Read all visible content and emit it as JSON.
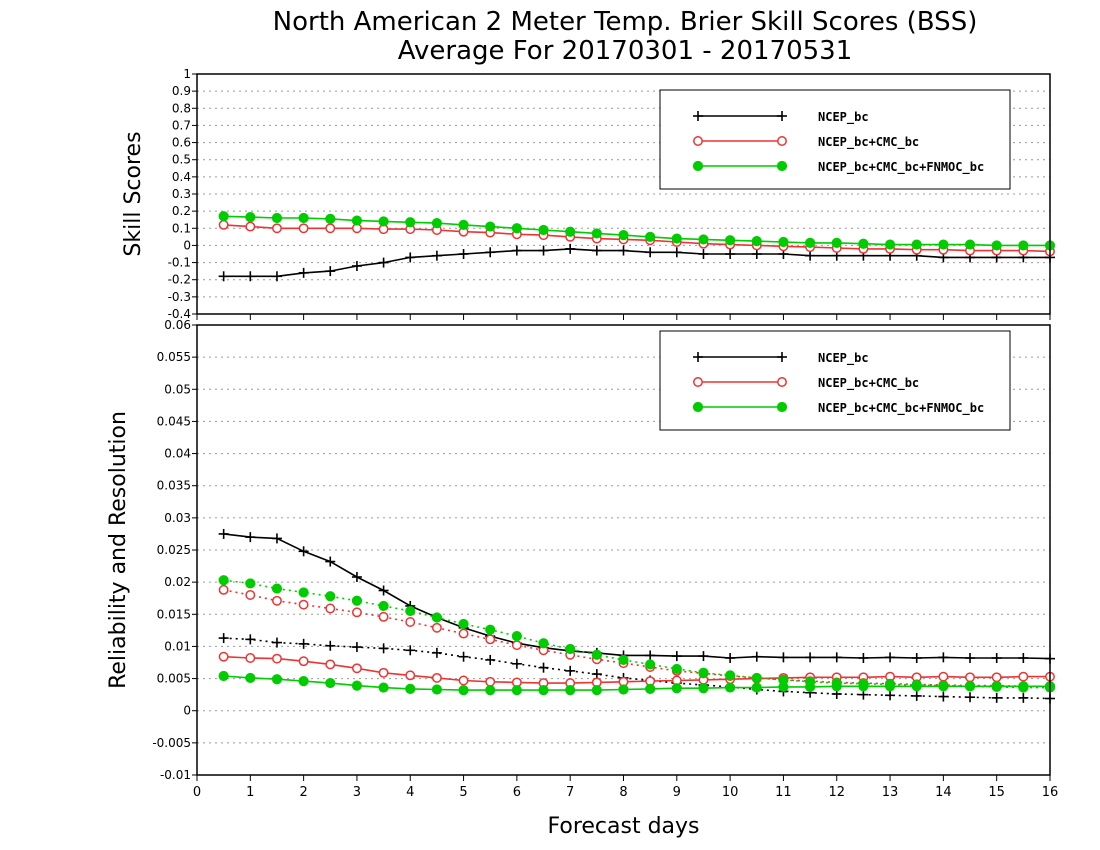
{
  "colors": {
    "ncep": "#000000",
    "cmc": "#ee3333",
    "fnmoc": "#00cc00",
    "grid": "#999999"
  },
  "chart_data": [
    {
      "type": "line",
      "title": "North American 2 Meter Temp. Brier Skill Scores (BSS)",
      "subtitle": "Average For 20170301 - 20170531",
      "xlabel": "",
      "ylabel": "Skill Scores",
      "xlim": [
        0,
        16
      ],
      "ylim": [
        -0.4,
        1
      ],
      "yticks": [
        "-0.4",
        "-0.3",
        "-0.2",
        "-0.1",
        "0",
        "0.1",
        "0.2",
        "0.3",
        "0.4",
        "0.5",
        "0.6",
        "0.7",
        "0.8",
        "0.9",
        "1"
      ],
      "grid": true,
      "legend_position": "top-right",
      "x": [
        0.5,
        1,
        1.5,
        2,
        2.5,
        3,
        3.5,
        4,
        4.5,
        5,
        5.5,
        6,
        6.5,
        7,
        7.5,
        8,
        8.5,
        9,
        9.5,
        10,
        10.5,
        11,
        11.5,
        12,
        12.5,
        13,
        13.5,
        14,
        14.5,
        15,
        15.5,
        16
      ],
      "series": [
        {
          "name": "NCEP_bc",
          "style": "solid",
          "marker": "plus",
          "values": [
            -0.18,
            -0.18,
            -0.18,
            -0.16,
            -0.15,
            -0.12,
            -0.1,
            -0.07,
            -0.06,
            -0.05,
            -0.04,
            -0.03,
            -0.03,
            -0.02,
            -0.03,
            -0.03,
            -0.04,
            -0.04,
            -0.05,
            -0.05,
            -0.05,
            -0.05,
            -0.06,
            -0.06,
            -0.06,
            -0.06,
            -0.06,
            -0.07,
            -0.07,
            -0.07,
            -0.07,
            -0.07
          ]
        },
        {
          "name": "NCEP_bc+CMC_bc",
          "style": "solid",
          "marker": "open-circle",
          "values": [
            0.12,
            0.11,
            0.1,
            0.1,
            0.1,
            0.1,
            0.095,
            0.095,
            0.09,
            0.08,
            0.075,
            0.065,
            0.06,
            0.05,
            0.04,
            0.035,
            0.03,
            0.02,
            0.01,
            0.005,
            0,
            -0.005,
            -0.01,
            -0.015,
            -0.02,
            -0.02,
            -0.025,
            -0.025,
            -0.03,
            -0.03,
            -0.03,
            -0.035
          ]
        },
        {
          "name": "NCEP_bc+CMC_bc+FNMOC_bc",
          "style": "solid",
          "marker": "filled-circle",
          "values": [
            0.17,
            0.165,
            0.16,
            0.16,
            0.155,
            0.145,
            0.14,
            0.135,
            0.13,
            0.12,
            0.11,
            0.1,
            0.09,
            0.08,
            0.07,
            0.06,
            0.05,
            0.04,
            0.035,
            0.03,
            0.025,
            0.02,
            0.015,
            0.015,
            0.01,
            0.005,
            0.005,
            0.005,
            0.005,
            0,
            0,
            0
          ]
        }
      ]
    },
    {
      "type": "line",
      "title": "",
      "xlabel": "Forecast days",
      "ylabel": "Reliability and Resolution",
      "xlim": [
        0,
        16
      ],
      "xticks": [
        "0",
        "1",
        "2",
        "3",
        "4",
        "5",
        "6",
        "7",
        "8",
        "9",
        "10",
        "11",
        "12",
        "13",
        "14",
        "15",
        "16"
      ],
      "ylim": [
        -0.01,
        0.06
      ],
      "yticks": [
        "-0.01",
        "-0.005",
        "0",
        "0.005",
        "0.01",
        "0.015",
        "0.02",
        "0.025",
        "0.03",
        "0.035",
        "0.04",
        "0.045",
        "0.05",
        "0.055",
        "0.06"
      ],
      "grid": true,
      "legend_position": "top-right",
      "x": [
        0.5,
        1,
        1.5,
        2,
        2.5,
        3,
        3.5,
        4,
        4.5,
        5,
        5.5,
        6,
        6.5,
        7,
        7.5,
        8,
        8.5,
        9,
        9.5,
        10,
        10.5,
        11,
        11.5,
        12,
        12.5,
        13,
        13.5,
        14,
        14.5,
        15,
        15.5,
        16
      ],
      "series": [
        {
          "name": "NCEP_bc",
          "style": "solid",
          "marker": "plus",
          "values": [
            0.0275,
            0.027,
            0.0268,
            0.0248,
            0.0232,
            0.0208,
            0.0187,
            0.0163,
            0.0145,
            0.0129,
            0.0116,
            0.0105,
            0.0098,
            0.0093,
            0.009,
            0.0086,
            0.0086,
            0.0085,
            0.0085,
            0.0082,
            0.0084,
            0.0083,
            0.0083,
            0.0083,
            0.0082,
            0.0083,
            0.0082,
            0.0083,
            0.0082,
            0.0082,
            0.0082,
            0.0081
          ]
        },
        {
          "name": "",
          "style": "dotted",
          "marker": "plus",
          "values": [
            0.0113,
            0.0111,
            0.0106,
            0.0104,
            0.0101,
            0.0099,
            0.0097,
            0.0094,
            0.009,
            0.0084,
            0.0079,
            0.0073,
            0.0067,
            0.0062,
            0.0057,
            0.0051,
            0.0047,
            0.0043,
            0.004,
            0.0037,
            0.0033,
            0.003,
            0.0028,
            0.0026,
            0.0025,
            0.0024,
            0.0023,
            0.0022,
            0.0021,
            0.002,
            0.002,
            0.0019
          ]
        },
        {
          "name": "NCEP_bc+CMC_bc",
          "style": "solid",
          "marker": "open-circle",
          "values": [
            0.0084,
            0.0082,
            0.0081,
            0.0077,
            0.0072,
            0.0066,
            0.0059,
            0.0055,
            0.0051,
            0.0047,
            0.0045,
            0.0044,
            0.0043,
            0.0043,
            0.0044,
            0.0045,
            0.0046,
            0.0047,
            0.0048,
            0.0049,
            0.005,
            0.0051,
            0.0052,
            0.0052,
            0.0052,
            0.0053,
            0.0052,
            0.0053,
            0.0052,
            0.0052,
            0.0053,
            0.0053
          ]
        },
        {
          "name": "",
          "style": "dotted",
          "marker": "open-circle",
          "values": [
            0.0188,
            0.018,
            0.0171,
            0.0165,
            0.0159,
            0.0153,
            0.0146,
            0.0138,
            0.0129,
            0.012,
            0.0111,
            0.0102,
            0.0094,
            0.0087,
            0.008,
            0.0074,
            0.0068,
            0.0062,
            0.0058,
            0.0054,
            0.0051,
            0.0048,
            0.0046,
            0.0044,
            0.0043,
            0.0042,
            0.0041,
            0.004,
            0.0039,
            0.0039,
            0.0038,
            0.0038
          ]
        },
        {
          "name": "NCEP_bc+CMC_bc+FNMOC_bc",
          "style": "solid",
          "marker": "filled-circle",
          "values": [
            0.0054,
            0.0051,
            0.0049,
            0.0046,
            0.0043,
            0.0039,
            0.0036,
            0.0034,
            0.0033,
            0.0032,
            0.0032,
            0.0032,
            0.0032,
            0.0032,
            0.0032,
            0.0033,
            0.0034,
            0.0035,
            0.0035,
            0.0036,
            0.0036,
            0.0037,
            0.0037,
            0.0038,
            0.0038,
            0.0038,
            0.0038,
            0.0038,
            0.0038,
            0.0038,
            0.0038,
            0.0038
          ]
        },
        {
          "name": "",
          "style": "dotted",
          "marker": "filled-circle",
          "values": [
            0.0203,
            0.0198,
            0.019,
            0.0184,
            0.0178,
            0.0171,
            0.0163,
            0.0155,
            0.0145,
            0.0135,
            0.0126,
            0.0116,
            0.0105,
            0.0096,
            0.0087,
            0.0079,
            0.0072,
            0.0065,
            0.0059,
            0.0055,
            0.0051,
            0.0048,
            0.0045,
            0.0043,
            0.0042,
            0.0041,
            0.004,
            0.0039,
            0.0038,
            0.0037,
            0.0036,
            0.0036
          ]
        }
      ]
    }
  ]
}
